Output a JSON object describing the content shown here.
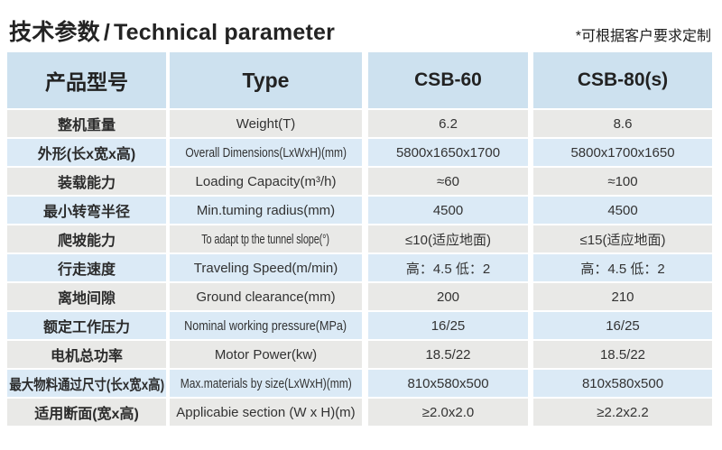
{
  "title": {
    "cn": "技术参数",
    "sep": "/",
    "en": "Technical parameter"
  },
  "note": "*可根据客户要求定制",
  "table": {
    "header": {
      "product_label_cn": "产品型号",
      "product_label_en": "Type",
      "model1": "CSB-60",
      "model2": "CSB-80(s)"
    },
    "rows": [
      {
        "cn": "整机重量",
        "en": "Weight(T)",
        "csb60": "6.2",
        "csb80": "8.6"
      },
      {
        "cn": "外形(长x宽x高)",
        "en": "Overall Dimensions(LxWxH)(mm)",
        "csb60": "5800x1650x1700",
        "csb80": "5800x1700x1650"
      },
      {
        "cn": "装载能力",
        "en": "Loading Capacity(m³/h)",
        "csb60": "≈60",
        "csb80": "≈100"
      },
      {
        "cn": "最小转弯半径",
        "en": "Min.tuming radius(mm)",
        "csb60": "4500",
        "csb80": "4500"
      },
      {
        "cn": "爬坡能力",
        "en": "To adapt tp the tunnel slope(°)",
        "csb60": "≤10(适应地面)",
        "csb80": "≤15(适应地面)"
      },
      {
        "cn": "行走速度",
        "en": "Traveling Speed(m/min)",
        "csb60": "高：4.5 低：2",
        "csb80": "高：4.5 低：2"
      },
      {
        "cn": "离地间隙",
        "en": "Ground clearance(mm)",
        "csb60": "200",
        "csb80": "210"
      },
      {
        "cn": "额定工作压力",
        "en": "Nominal working pressure(MPa)",
        "csb60": "16/25",
        "csb80": "16/25"
      },
      {
        "cn": "电机总功率",
        "en": "Motor Power(kw)",
        "csb60": "18.5/22",
        "csb80": "18.5/22"
      },
      {
        "cn": "最大物料通过尺寸(长x宽x高)",
        "en": "Max.materials by size(LxWxH)(mm)",
        "csb60": "810x580x500",
        "csb80": "810x580x500"
      },
      {
        "cn": "适用断面(宽x高)",
        "en": "Applicabie section (W x H)(m)",
        "csb60": "≥2.0x2.0",
        "csb80": "≥2.2x2.2"
      }
    ],
    "colors": {
      "header_bg": "#cde1ef",
      "row_blue": "#dbeaf6",
      "row_gray": "#e9e9e7"
    }
  }
}
